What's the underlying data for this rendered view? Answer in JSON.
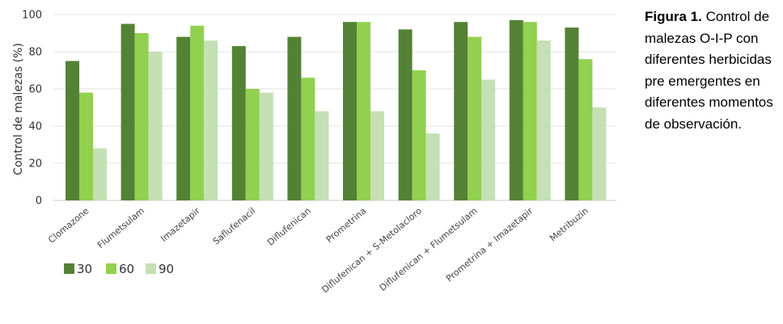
{
  "caption": {
    "label": "Figura 1.",
    "text": "Control de malezas O-I-P con diferentes herbicidas pre emergentes en diferentes momentos de observación."
  },
  "chart_data": {
    "type": "bar",
    "ylabel": "Control de malezas (%)",
    "ylim": [
      0,
      100
    ],
    "yticks": [
      0,
      20,
      40,
      60,
      80,
      100
    ],
    "grid": true,
    "legend_position": "bottom-left",
    "categories": [
      "Clomazone",
      "Flumetsulam",
      "Imazetapir",
      "Saflufenacil",
      "Diflufenican",
      "Prometrina",
      "Diflufenican + S-Metolacloro",
      "Diflufenican + Flumetsulam",
      "Prometrina + Imazetapir",
      "Metribuzin"
    ],
    "series": [
      {
        "name": "30",
        "color": "#548235",
        "values": [
          75,
          95,
          88,
          83,
          88,
          96,
          92,
          96,
          97,
          93
        ]
      },
      {
        "name": "60",
        "color": "#92d050",
        "values": [
          58,
          90,
          94,
          60,
          66,
          96,
          70,
          88,
          96,
          76
        ]
      },
      {
        "name": "90",
        "color": "#c5e0b4",
        "values": [
          28,
          80,
          86,
          58,
          48,
          48,
          36,
          65,
          86,
          50
        ]
      }
    ]
  }
}
